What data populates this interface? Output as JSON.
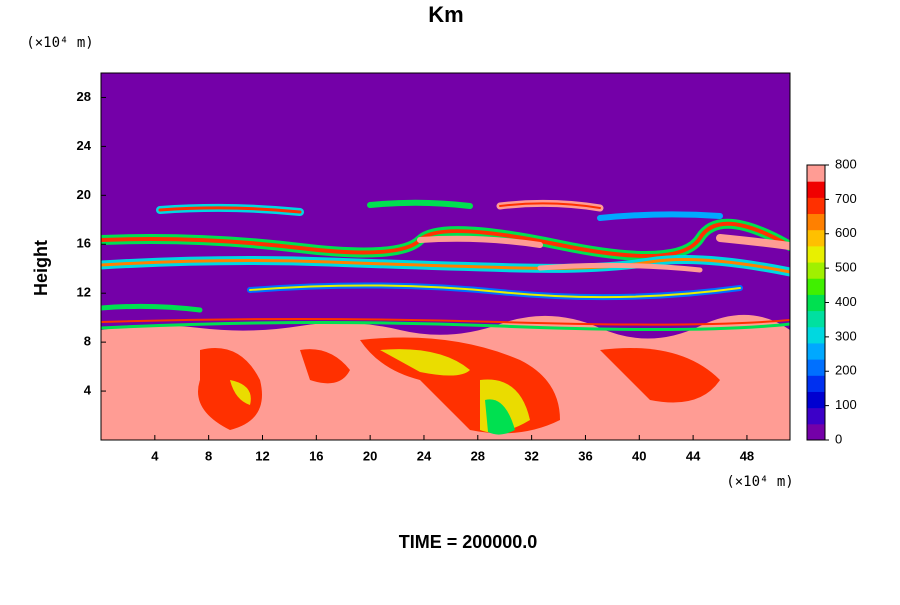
{
  "chart_data": {
    "type": "contour",
    "title": "Km",
    "y_unit": "(×10⁴ m)",
    "x_unit": "(×10⁴ m)",
    "ylabel": "Height",
    "footer": "TIME = 200000.0",
    "xlim": [
      0,
      51.2
    ],
    "xticks": [
      4,
      8,
      12,
      16,
      20,
      24,
      28,
      32,
      36,
      40,
      44,
      48
    ],
    "ylim": [
      0,
      30
    ],
    "yticks": [
      4,
      8,
      12,
      16,
      20,
      24,
      28
    ],
    "clim": [
      0,
      800
    ],
    "cticks": [
      0,
      100,
      200,
      300,
      400,
      500,
      600,
      700,
      800
    ],
    "colors": [
      "#7400a8",
      "#3c00c8",
      "#0000d0",
      "#0030f0",
      "#0070ff",
      "#00a8ff",
      "#00d8e0",
      "#00e0a0",
      "#00e050",
      "#40f000",
      "#a0f000",
      "#e8f000",
      "#ffc000",
      "#ff8000",
      "#ff3000",
      "#f00000",
      "#ff9c94"
    ]
  }
}
